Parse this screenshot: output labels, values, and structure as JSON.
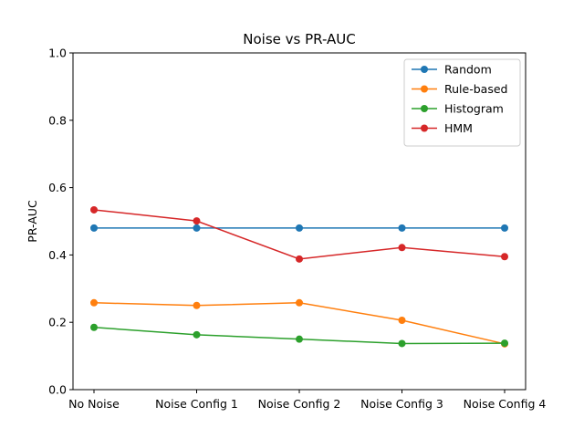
{
  "chart_data": {
    "type": "line",
    "title": "Noise vs PR-AUC",
    "xlabel": "",
    "ylabel": "PR-AUC",
    "categories": [
      "No Noise",
      "Noise Config 1",
      "Noise Config 2",
      "Noise Config 3",
      "Noise Config 4"
    ],
    "ylim": [
      0,
      1.0
    ],
    "yticks": [
      "0.0",
      "0.2",
      "0.4",
      "0.6",
      "0.8",
      "1.0"
    ],
    "legend_position": "top-right",
    "grid": false,
    "series": [
      {
        "name": "Random",
        "color": "#1f77b4",
        "values": [
          0.48,
          0.48,
          0.48,
          0.48,
          0.48
        ]
      },
      {
        "name": "Rule-based",
        "color": "#ff7f0e",
        "values": [
          0.258,
          0.25,
          0.258,
          0.206,
          0.136
        ]
      },
      {
        "name": "Histogram",
        "color": "#2ca02c",
        "values": [
          0.185,
          0.163,
          0.15,
          0.137,
          0.138
        ]
      },
      {
        "name": "HMM",
        "color": "#d62728",
        "values": [
          0.534,
          0.501,
          0.388,
          0.422,
          0.395
        ]
      }
    ]
  }
}
